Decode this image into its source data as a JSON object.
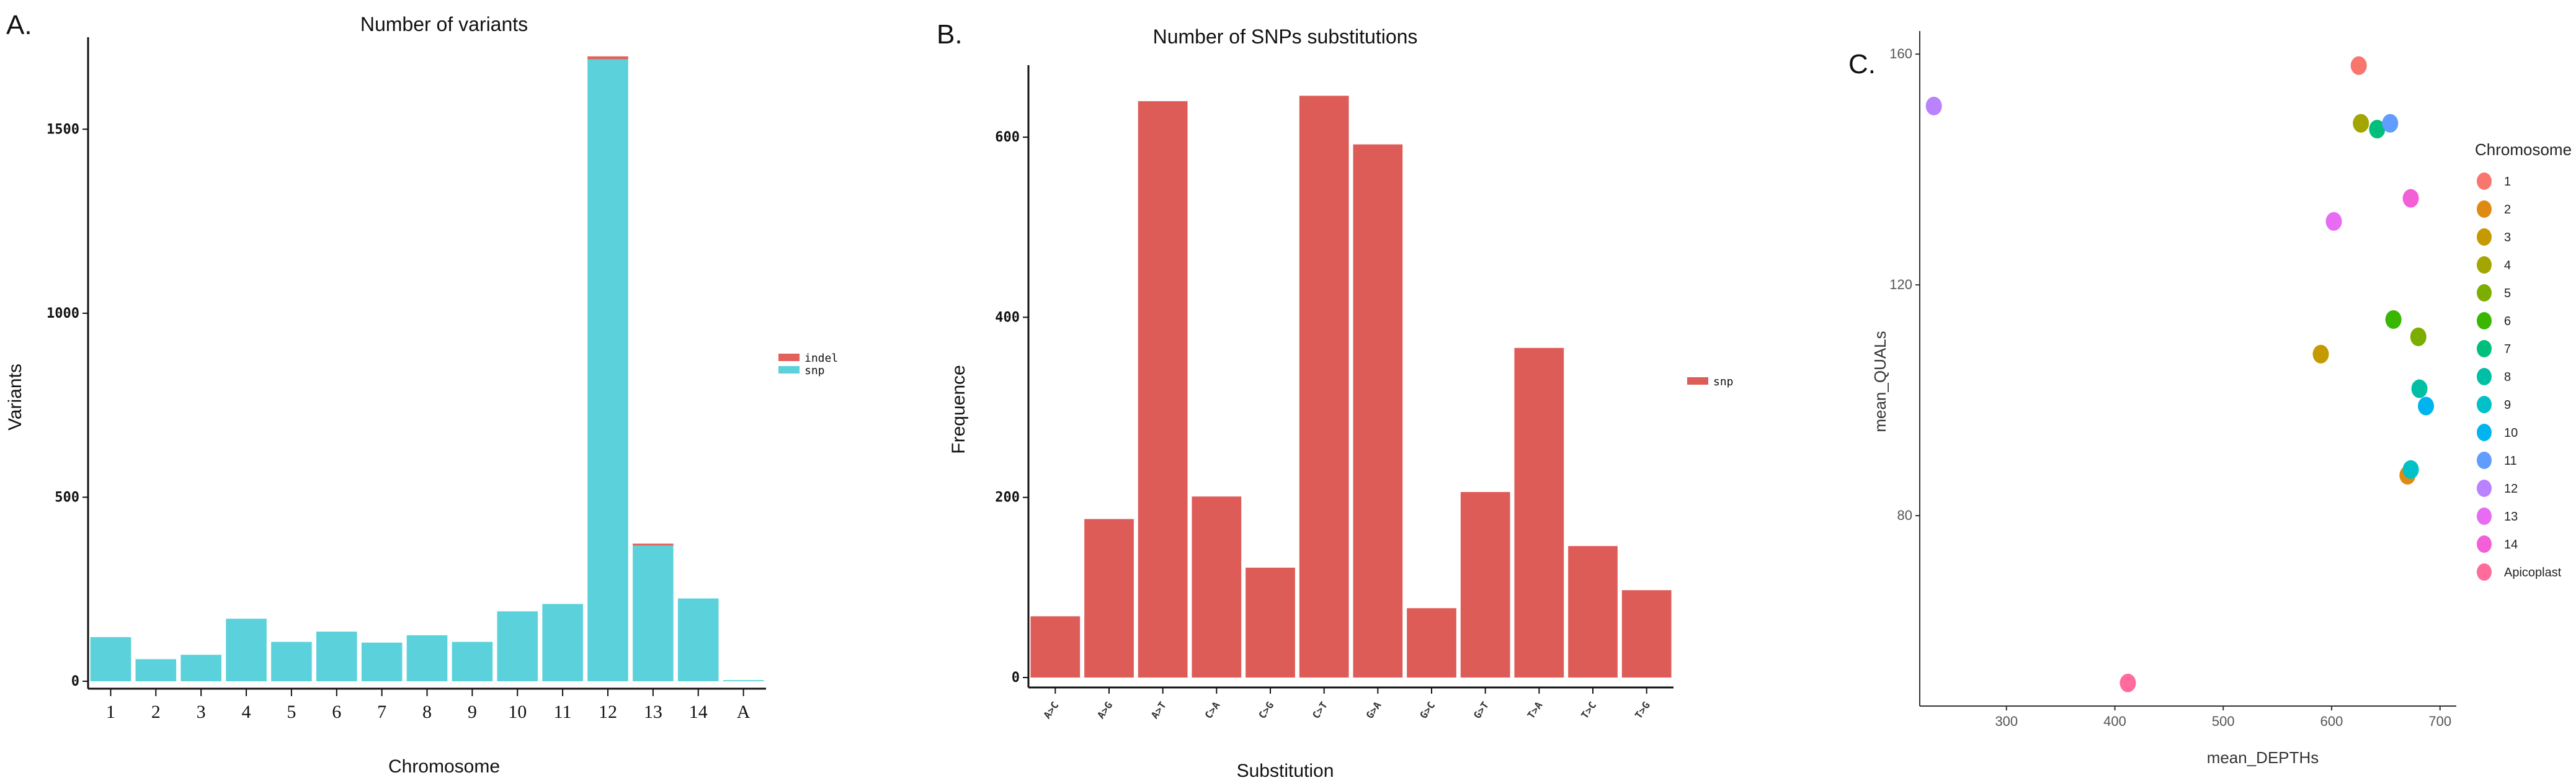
{
  "chart_data": [
    {
      "panel": "A.",
      "type": "bar",
      "title": "Number of variants",
      "xlabel": "Chromosome",
      "ylabel": "Variants",
      "categories": [
        "1",
        "2",
        "3",
        "4",
        "5",
        "6",
        "7",
        "8",
        "9",
        "10",
        "11",
        "12",
        "13",
        "14",
        "A"
      ],
      "series": [
        {
          "name": "snp",
          "color": "#5bd2db",
          "values": [
            120,
            60,
            72,
            170,
            107,
            135,
            105,
            125,
            107,
            190,
            210,
            1690,
            370,
            225,
            3
          ]
        },
        {
          "name": "indel",
          "color": "#e2625b",
          "values": [
            0,
            0,
            0,
            0,
            0,
            0,
            0,
            0,
            0,
            0,
            0,
            8,
            4,
            0,
            0
          ]
        }
      ],
      "stacked": true,
      "ylim": [
        0,
        1750
      ],
      "yticks": [
        0,
        500,
        1000,
        1500
      ],
      "legend": "right"
    },
    {
      "panel": "B.",
      "type": "bar",
      "title": "Number of SNPs substitutions",
      "xlabel": "Substitution",
      "ylabel": "Frequence",
      "categories": [
        "A>C",
        "A>G",
        "A>T",
        "C>A",
        "C>G",
        "C>T",
        "G>A",
        "G>C",
        "G>T",
        "T>A",
        "T>C",
        "T>G"
      ],
      "series": [
        {
          "name": "snp",
          "color": "#de5c57",
          "values": [
            68,
            176,
            640,
            201,
            122,
            646,
            592,
            77,
            206,
            366,
            146,
            97
          ]
        }
      ],
      "ylim": [
        0,
        680
      ],
      "yticks": [
        0,
        200,
        400,
        600
      ],
      "legend": "right"
    },
    {
      "panel": "C.",
      "type": "scatter",
      "xlabel": "mean_DEPTHs",
      "ylabel": "mean_QUALs",
      "xlim": [
        220,
        715
      ],
      "ylim": [
        47,
        164
      ],
      "xticks": [
        300,
        400,
        500,
        600,
        700
      ],
      "yticks": [
        80,
        120,
        160
      ],
      "legend_title": "Chromosome",
      "legend": "right",
      "points": [
        {
          "name": "1",
          "color": "#f8766d",
          "x": 625,
          "y": 158
        },
        {
          "name": "2",
          "color": "#df8a12",
          "x": 670,
          "y": 87
        },
        {
          "name": "3",
          "color": "#c49a00",
          "x": 590,
          "y": 108
        },
        {
          "name": "4",
          "color": "#a3a500",
          "x": 627,
          "y": 148
        },
        {
          "name": "5",
          "color": "#7cae00",
          "x": 680,
          "y": 111
        },
        {
          "name": "6",
          "color": "#39b600",
          "x": 657,
          "y": 114
        },
        {
          "name": "7",
          "color": "#00bf7d",
          "x": 642,
          "y": 147
        },
        {
          "name": "8",
          "color": "#00bfa4",
          "x": 681,
          "y": 102
        },
        {
          "name": "9",
          "color": "#00c1c7",
          "x": 673,
          "y": 88
        },
        {
          "name": "10",
          "color": "#00b4ef",
          "x": 687,
          "y": 99
        },
        {
          "name": "11",
          "color": "#619cff",
          "x": 654,
          "y": 148
        },
        {
          "name": "12",
          "color": "#b983ff",
          "x": 233,
          "y": 151
        },
        {
          "name": "13",
          "color": "#e76bf3",
          "x": 602,
          "y": 131
        },
        {
          "name": "14",
          "color": "#f35fd6",
          "x": 673,
          "y": 135
        },
        {
          "name": "Apicoplast",
          "color": "#ff6c9c",
          "x": 412,
          "y": 51
        }
      ]
    }
  ]
}
